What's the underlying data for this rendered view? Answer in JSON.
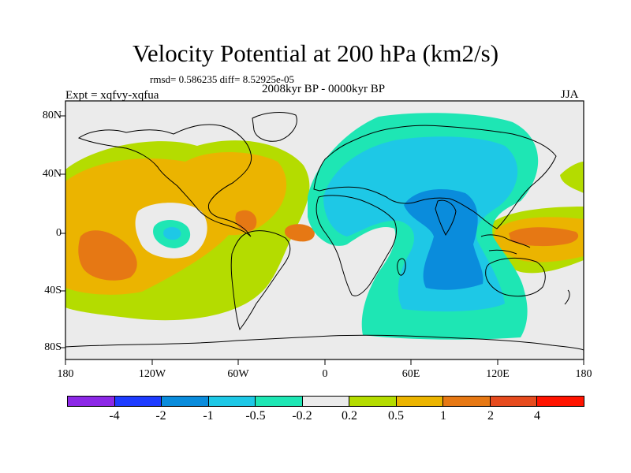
{
  "title": "Velocity Potential at 200 hPa (km2/s)",
  "stats": "rmsd= 0.586235 diff= 8.52925e-05",
  "expt": "Expt = xqfvy-xqfua",
  "period": "2008kyr BP - 0000kyr BP",
  "season": "JJA",
  "map": {
    "lat_labels": [
      "80N",
      "40N",
      "0",
      "40S",
      "80S"
    ],
    "lon_labels": [
      "180",
      "120W",
      "60W",
      "0",
      "60E",
      "120E",
      "180"
    ],
    "fill_levels": {
      "pos_medium": "#ebb400",
      "pos_strong": "#e67814",
      "pos_weak": "#b4dc00",
      "neg_weak": "#1ee6b4",
      "neg_medium": "#1ec8e6",
      "neg_strong": "#0a8cdc",
      "background": "#ebebeb"
    }
  },
  "colorbar": {
    "colors": [
      "#8c28e6",
      "#1e3cff",
      "#0a8cdc",
      "#1ec8e6",
      "#1ee6b4",
      "#ebebeb",
      "#b4dc00",
      "#ebb400",
      "#e67814",
      "#e64b1e",
      "#ff1400"
    ],
    "labels": [
      "-4",
      "-2",
      "-1",
      "-0.5",
      "-0.2",
      "0.2",
      "0.5",
      "1",
      "2",
      "4"
    ]
  }
}
